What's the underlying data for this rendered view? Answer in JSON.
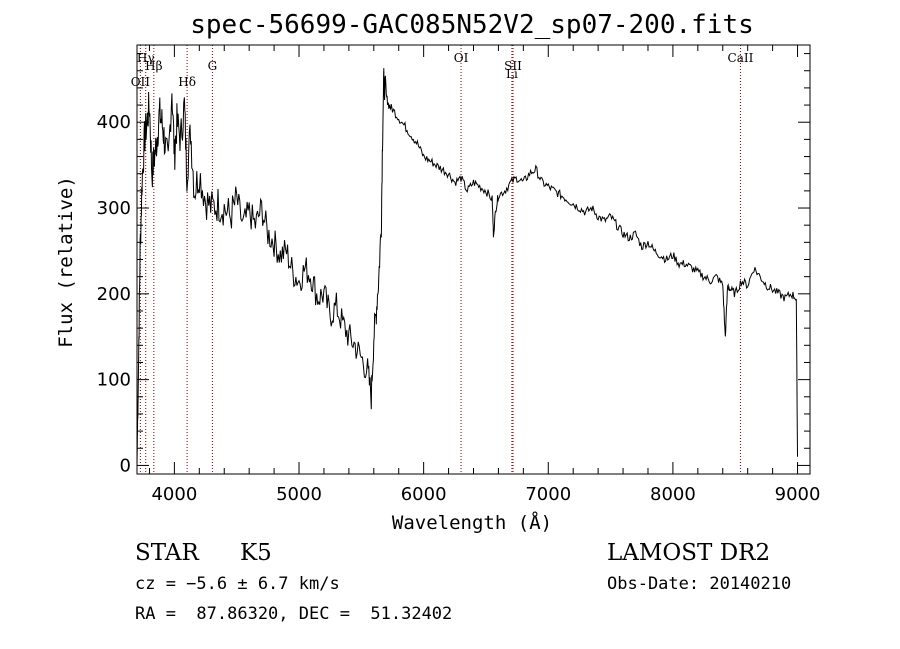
{
  "chart_data": {
    "type": "line",
    "title": "spec-56699-GAC085N52V2_sp07-200.fits",
    "xlabel": "Wavelength (Å)",
    "ylabel": "Flux (relative)",
    "xlim": [
      3700,
      9100
    ],
    "ylim": [
      -10,
      490
    ],
    "x_ticks": [
      4000,
      5000,
      6000,
      7000,
      8000,
      9000
    ],
    "y_ticks": [
      0,
      100,
      200,
      300,
      400
    ],
    "x_tick_labels": [
      "4000",
      "5000",
      "6000",
      "7000",
      "8000",
      "9000"
    ],
    "y_tick_labels": [
      "0",
      "100",
      "200",
      "300",
      "400"
    ],
    "grid": false,
    "line_color": "#000000",
    "marker_color": "#8b0000",
    "spectral_lines": [
      {
        "label": "OII",
        "x": 3727,
        "row": 3
      },
      {
        "label": "Hγ",
        "x": 3770,
        "row": 0
      },
      {
        "label": "Hβ",
        "x": 3835,
        "row": 1
      },
      {
        "label": "Hδ",
        "x": 4102,
        "row": 3
      },
      {
        "label": "G",
        "x": 4305,
        "row": 1
      },
      {
        "label": "OI",
        "x": 6300,
        "row": 0
      },
      {
        "label": "SII",
        "x": 6717,
        "row": 1
      },
      {
        "label": "Li",
        "x": 6708,
        "row": 2
      },
      {
        "label": "CaII",
        "x": 8542,
        "row": 0
      }
    ],
    "series": [
      {
        "x": [
          3700,
          3715,
          3725,
          3740,
          3760,
          3780,
          3800,
          3820,
          3840,
          3860,
          3880,
          3900,
          3920,
          3950,
          3980,
          4000,
          4020,
          4050,
          4080,
          4100,
          4130,
          4160,
          4200,
          4250,
          4300,
          4350,
          4400,
          4450,
          4500,
          4550,
          4600,
          4650,
          4700,
          4750,
          4800,
          4850,
          4900,
          4950,
          5000,
          5050,
          5100,
          5150,
          5200,
          5250,
          5300,
          5350,
          5400,
          5450,
          5500,
          5550,
          5580,
          5600,
          5620,
          5640,
          5660,
          5670,
          5680,
          5700,
          5720,
          5750,
          5800,
          5850,
          5900,
          5950,
          6000,
          6050,
          6100,
          6150,
          6200,
          6250,
          6300,
          6350,
          6400,
          6450,
          6500,
          6550,
          6560,
          6580,
          6600,
          6650,
          6700,
          6750,
          6800,
          6850,
          6900,
          6950,
          7000,
          7050,
          7100,
          7150,
          7200,
          7250,
          7300,
          7350,
          7400,
          7450,
          7500,
          7550,
          7600,
          7650,
          7700,
          7750,
          7800,
          7850,
          7900,
          7950,
          8000,
          8050,
          8100,
          8150,
          8200,
          8250,
          8300,
          8350,
          8400,
          8420,
          8440,
          8460,
          8500,
          8550,
          8600,
          8650,
          8700,
          8750,
          8800,
          8850,
          8900,
          8950,
          8990,
          9000
        ],
        "y": [
          0,
          150,
          250,
          330,
          380,
          400,
          420,
          340,
          360,
          380,
          410,
          400,
          380,
          350,
          440,
          360,
          400,
          380,
          420,
          340,
          390,
          320,
          340,
          310,
          300,
          305,
          300,
          290,
          310,
          280,
          295,
          280,
          300,
          270,
          260,
          245,
          250,
          225,
          215,
          230,
          220,
          195,
          200,
          175,
          185,
          165,
          150,
          140,
          125,
          110,
          80,
          150,
          180,
          220,
          280,
          380,
          450,
          430,
          420,
          415,
          405,
          395,
          385,
          375,
          360,
          355,
          350,
          345,
          340,
          330,
          335,
          320,
          330,
          325,
          320,
          310,
          270,
          300,
          315,
          320,
          330,
          335,
          330,
          340,
          345,
          330,
          325,
          320,
          315,
          310,
          305,
          300,
          295,
          300,
          290,
          285,
          290,
          280,
          270,
          265,
          270,
          255,
          260,
          250,
          245,
          240,
          245,
          235,
          235,
          230,
          225,
          220,
          215,
          220,
          210,
          150,
          210,
          205,
          200,
          215,
          210,
          230,
          220,
          210,
          205,
          200,
          195,
          200,
          195,
          10
        ]
      }
    ]
  },
  "info": {
    "object_class": "STAR",
    "subclass": "K5",
    "survey": "LAMOST DR2",
    "redshift": "cz = −5.6 ± 6.7 km/s",
    "obs_date": "Obs-Date: 20140210",
    "coords": "RA =  87.86320, DEC =  51.32402"
  }
}
